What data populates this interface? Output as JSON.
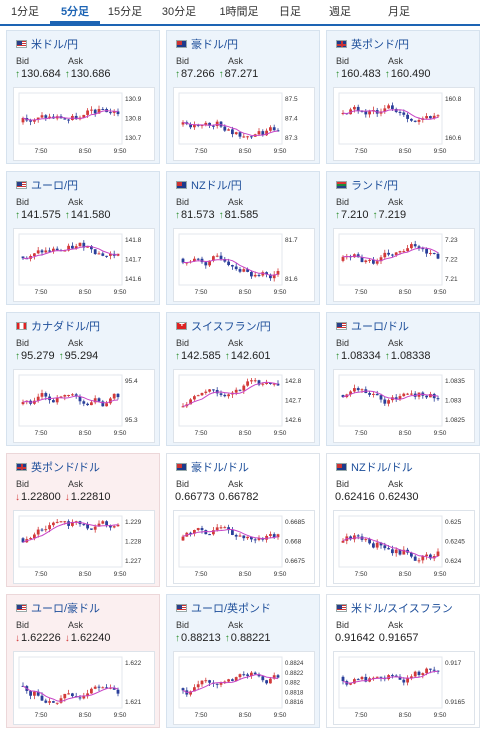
{
  "tabs": [
    {
      "label": "1分足",
      "active": false
    },
    {
      "label": "5分足",
      "active": true
    },
    {
      "label": "15分足",
      "active": false
    },
    {
      "label": "30分足",
      "active": false
    },
    {
      "label": "1時間足",
      "active": false
    },
    {
      "label": "日足",
      "active": false
    },
    {
      "label": "週足",
      "active": false
    },
    {
      "label": "月足",
      "active": false
    }
  ],
  "labels": {
    "bid": "Bid",
    "ask": "Ask"
  },
  "colors": {
    "up_candle": "#d23a3a",
    "down_candle": "#2a3f9a",
    "moving_average": "#c744c7",
    "tab_active": "#1d64b4",
    "title": "#1d4e9a",
    "arrow_up": "#2c8f2c",
    "arrow_down": "#d23a3a"
  },
  "cards": [
    {
      "title": "米ドル/円",
      "flag": "us-jp-flag",
      "state": "up",
      "bid": "130.684",
      "ask": "130.686",
      "y_ticks": [
        "130.9",
        "130.8",
        "130.7"
      ],
      "x_ticks": [
        "7:50",
        "8:50",
        "9:50"
      ]
    },
    {
      "title": "豪ドル/円",
      "flag": "au-jp-flag",
      "state": "up",
      "bid": "87.266",
      "ask": "87.271",
      "y_ticks": [
        "87.5",
        "87.4",
        "87.3"
      ],
      "x_ticks": [
        "7:50",
        "8:50",
        "9:50"
      ]
    },
    {
      "title": "英ポンド/円",
      "flag": "gb-jp-flag",
      "state": "up",
      "bid": "160.483",
      "ask": "160.490",
      "y_ticks": [
        "160.8",
        "160.6"
      ],
      "x_ticks": [
        "7:50",
        "8:50",
        "9:50"
      ]
    },
    {
      "title": "ユーロ/円",
      "flag": "eu-jp-flag",
      "state": "up",
      "bid": "141.575",
      "ask": "141.580",
      "y_ticks": [
        "141.8",
        "141.7",
        "141.6"
      ],
      "x_ticks": [
        "7:50",
        "8:50",
        "9:50"
      ]
    },
    {
      "title": "NZドル/円",
      "flag": "nz-jp-flag",
      "state": "up",
      "bid": "81.573",
      "ask": "81.585",
      "y_ticks": [
        "81.7",
        "81.6"
      ],
      "x_ticks": [
        "7:50",
        "8:50",
        "9:50"
      ]
    },
    {
      "title": "ランド/円",
      "flag": "za-jp-flag",
      "state": "up",
      "bid": "7.210",
      "ask": "7.219",
      "y_ticks": [
        "7.23",
        "7.22",
        "7.21"
      ],
      "x_ticks": [
        "7:50",
        "8:50",
        "9:50"
      ]
    },
    {
      "title": "カナダドル/円",
      "flag": "ca-jp-flag",
      "state": "up",
      "bid": "95.279",
      "ask": "95.294",
      "y_ticks": [
        "95.4",
        "95.3"
      ],
      "x_ticks": [
        "7:50",
        "8:50",
        "9:50"
      ]
    },
    {
      "title": "スイスフラン/円",
      "flag": "ch-jp-flag",
      "state": "up",
      "bid": "142.585",
      "ask": "142.601",
      "y_ticks": [
        "142.8",
        "142.7",
        "142.6"
      ],
      "x_ticks": [
        "7:50",
        "8:50",
        "9:50"
      ]
    },
    {
      "title": "ユーロ/ドル",
      "flag": "eu-us-flag",
      "state": "up",
      "bid": "1.08334",
      "ask": "1.08338",
      "y_ticks": [
        "1.0835",
        "1.083",
        "1.0825"
      ],
      "x_ticks": [
        "7:50",
        "8:50",
        "9:50"
      ]
    },
    {
      "title": "英ポンド/ドル",
      "flag": "gb-us-flag",
      "state": "down",
      "bid": "1.22800",
      "ask": "1.22810",
      "y_ticks": [
        "1.229",
        "1.228",
        "1.227"
      ],
      "x_ticks": [
        "7:50",
        "8:50",
        "9:50"
      ]
    },
    {
      "title": "豪ドル/ドル",
      "flag": "au-us-flag",
      "state": "flat",
      "bid": "0.66773",
      "ask": "0.66782",
      "y_ticks": [
        "0.6685",
        "0.668",
        "0.6675"
      ],
      "x_ticks": [
        "7:50",
        "8:50",
        "9:50"
      ]
    },
    {
      "title": "NZドル/ドル",
      "flag": "nz-us-flag",
      "state": "flat",
      "bid": "0.62416",
      "ask": "0.62430",
      "y_ticks": [
        "0.625",
        "0.6245",
        "0.624"
      ],
      "x_ticks": [
        "7:50",
        "8:50",
        "9:50"
      ]
    },
    {
      "title": "ユーロ/豪ドル",
      "flag": "eu-au-flag",
      "state": "down",
      "bid": "1.62226",
      "ask": "1.62240",
      "y_ticks": [
        "1.622",
        "1.621"
      ],
      "x_ticks": [
        "7:50",
        "8:50",
        "9:50"
      ]
    },
    {
      "title": "ユーロ/英ポンド",
      "flag": "eu-gb-flag",
      "state": "up",
      "bid": "0.88213",
      "ask": "0.88221",
      "y_ticks": [
        "0.8824",
        "0.8822",
        "0.882",
        "0.8818",
        "0.8816"
      ],
      "x_ticks": [
        "7:50",
        "8:50",
        "9:50"
      ]
    },
    {
      "title": "米ドル/スイスフラン",
      "flag": "us-ch-flag",
      "state": "flat",
      "bid": "0.91642",
      "ask": "0.91657",
      "y_ticks": [
        "0.917",
        "0.9165"
      ],
      "x_ticks": [
        "7:50",
        "8:50",
        "9:50"
      ]
    }
  ]
}
